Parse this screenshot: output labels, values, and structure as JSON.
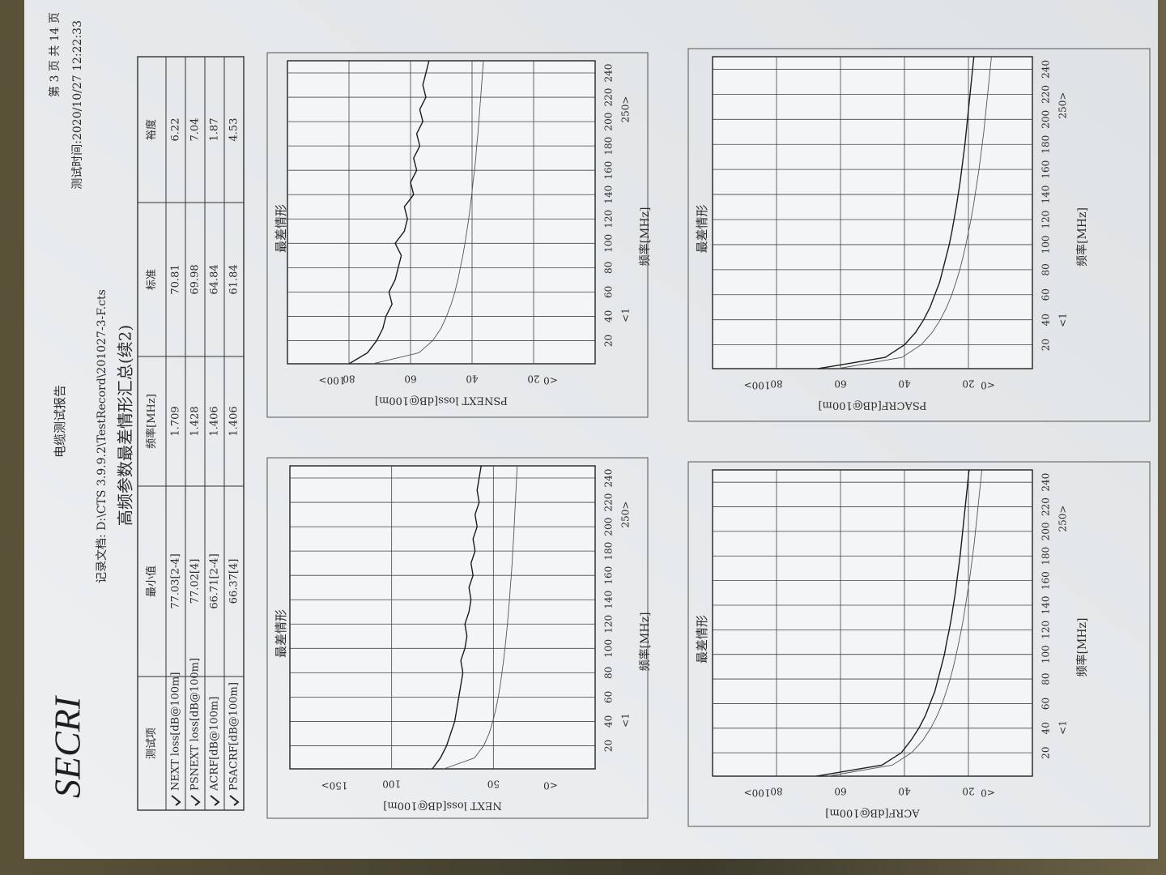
{
  "header": {
    "report_title": "电缆测试报告",
    "page": "第 3 页 共 14 页",
    "test_time": "测试时间:2020/10/27 12:22:33",
    "logo": "SECRI",
    "record_file": "记录文档: D:\\CTS 3.9.9.2\\TestRecord\\201027-3-F.cts"
  },
  "title": "高频参数最差情形汇总(续2)",
  "table": {
    "columns": [
      "测试项",
      "最小值",
      "频率[MHz]",
      "标准",
      "裕度"
    ],
    "rows": [
      [
        "NEXT loss[dB@100m]",
        "77.03[2-4]",
        1.709,
        70.81,
        6.22
      ],
      [
        "PSNEXT loss[dB@100m]",
        "77.02[4]",
        1.428,
        69.98,
        7.04
      ],
      [
        "ACRF[dB@100m]",
        "66.71[2-4]",
        1.406,
        64.84,
        1.87
      ],
      [
        "PSACRF[dB@100m]",
        "66.37[4]",
        1.406,
        61.84,
        4.53
      ]
    ]
  },
  "chart_data": [
    {
      "type": "line",
      "title": "最差情形",
      "x_label": "频率[MHz]",
      "y_label": "NEXT loss[dB@100m]",
      "grid": true,
      "x": [
        1,
        10,
        20,
        30,
        40,
        50,
        60,
        70,
        80,
        90,
        100,
        110,
        120,
        130,
        140,
        150,
        160,
        170,
        180,
        190,
        200,
        210,
        220,
        230,
        240,
        250
      ],
      "xlim": [
        1,
        250
      ],
      "xticks": [
        {
          "value": 1,
          "label": "<1"
        },
        20,
        40,
        60,
        80,
        100,
        120,
        140,
        160,
        180,
        200,
        220,
        240,
        {
          "value": 250,
          "label": "250>"
        }
      ],
      "ylim": [
        0,
        150
      ],
      "yticks": [
        {
          "value": 0,
          "label": "<0"
        },
        50,
        100,
        {
          "value": 150,
          "label": "150>"
        }
      ],
      "series": [
        {
          "color": "#1c1c1c",
          "values": [
            80,
            76,
            73,
            71,
            69,
            68,
            67,
            66,
            65,
            66,
            64,
            63,
            64,
            62,
            61,
            62,
            60,
            61,
            59,
            60,
            58,
            59,
            57,
            58,
            57,
            56
          ]
        },
        {
          "color": "#555555",
          "values": [
            74.3,
            59.3,
            54.8,
            52.1,
            50.3,
            48.8,
            47.6,
            46.6,
            45.8,
            45.0,
            44.3,
            43.7,
            43.1,
            42.6,
            42.1,
            41.7,
            41.2,
            40.8,
            40.5,
            40.1,
            39.8,
            39.5,
            39.2,
            38.9,
            38.6,
            38.3
          ]
        }
      ]
    },
    {
      "type": "line",
      "title": "最差情形",
      "x_label": "频率[MHz]",
      "y_label": "PSNEXT loss[dB@100m]",
      "grid": true,
      "x": [
        1,
        10,
        20,
        30,
        40,
        50,
        60,
        70,
        80,
        90,
        100,
        110,
        120,
        130,
        140,
        150,
        160,
        170,
        180,
        190,
        200,
        210,
        220,
        230,
        240,
        250
      ],
      "xlim": [
        1,
        250
      ],
      "xticks": [
        {
          "value": 1,
          "label": "<1"
        },
        20,
        40,
        60,
        80,
        100,
        120,
        140,
        160,
        180,
        200,
        220,
        240,
        {
          "value": 250,
          "label": "250>"
        }
      ],
      "ylim": [
        0,
        100
      ],
      "yticks": [
        {
          "value": 0,
          "label": "<0"
        },
        20,
        40,
        60,
        80,
        {
          "value": 100,
          "label": "100>"
        }
      ],
      "series": [
        {
          "color": "#1c1c1c",
          "values": [
            80,
            74,
            71,
            69,
            68,
            66,
            67,
            65,
            64,
            63,
            65,
            62,
            61,
            62,
            59,
            60,
            58,
            59,
            57,
            58,
            56,
            57,
            55,
            56,
            55,
            54
          ]
        },
        {
          "color": "#555555",
          "values": [
            72.3,
            57.3,
            52.8,
            50.1,
            48.3,
            46.8,
            45.6,
            44.6,
            43.8,
            43.0,
            42.3,
            41.7,
            41.1,
            40.6,
            40.1,
            39.7,
            39.2,
            38.8,
            38.5,
            38.1,
            37.8,
            37.5,
            37.2,
            36.9,
            36.6,
            36.3
          ]
        }
      ]
    },
    {
      "type": "line",
      "title": "最差情形",
      "x_label": "频率[MHz]",
      "y_label": "ACRF[dB@100m]",
      "grid": true,
      "x": [
        1,
        10,
        20,
        30,
        40,
        50,
        60,
        70,
        80,
        90,
        100,
        110,
        120,
        130,
        140,
        150,
        160,
        170,
        180,
        190,
        200,
        210,
        220,
        230,
        240,
        250
      ],
      "xlim": [
        1,
        250
      ],
      "xticks": [
        {
          "value": 1,
          "label": "<1"
        },
        20,
        40,
        60,
        80,
        100,
        120,
        140,
        160,
        180,
        200,
        220,
        240,
        {
          "value": 250,
          "label": "250>"
        }
      ],
      "ylim": [
        0,
        100
      ],
      "yticks": [
        {
          "value": 0,
          "label": "<0"
        },
        20,
        40,
        60,
        80,
        {
          "value": 100,
          "label": "100>"
        }
      ],
      "series": [
        {
          "color": "#1c1c1c",
          "values": [
            67.5,
            47,
            41,
            38,
            35.5,
            33.5,
            32,
            30.5,
            29.5,
            28.5,
            27.5,
            26.8,
            26,
            25.3,
            24.7,
            24.1,
            23.6,
            23.1,
            22.6,
            22.2,
            21.8,
            21.4,
            21,
            20.6,
            20.2,
            19.8
          ]
        },
        {
          "color": "#555555",
          "values": [
            63.8,
            43.8,
            37.8,
            34.3,
            31.8,
            29.8,
            28.2,
            26.9,
            25.7,
            24.7,
            23.8,
            23.0,
            22.2,
            21.5,
            20.9,
            20.3,
            19.7,
            19.2,
            18.7,
            18.2,
            17.8,
            17.4,
            17.0,
            16.6,
            16.2,
            15.8
          ]
        }
      ]
    },
    {
      "type": "line",
      "title": "最差情形",
      "x_label": "频率[MHz]",
      "y_label": "PSACRF[dB@100m]",
      "grid": true,
      "x": [
        1,
        10,
        20,
        30,
        40,
        50,
        60,
        70,
        80,
        90,
        100,
        110,
        120,
        130,
        140,
        150,
        160,
        170,
        180,
        190,
        200,
        210,
        220,
        230,
        240,
        250
      ],
      "xlim": [
        1,
        250
      ],
      "xticks": [
        {
          "value": 1,
          "label": "<1"
        },
        20,
        40,
        60,
        80,
        100,
        120,
        140,
        160,
        180,
        200,
        220,
        240,
        {
          "value": 250,
          "label": "250>"
        }
      ],
      "ylim": [
        0,
        100
      ],
      "yticks": [
        {
          "value": 0,
          "label": "<0"
        },
        20,
        40,
        60,
        80,
        {
          "value": 100,
          "label": "100>"
        }
      ],
      "series": [
        {
          "color": "#1c1c1c",
          "values": [
            67,
            46,
            40,
            36.5,
            34,
            32,
            30.5,
            29,
            28,
            27,
            26,
            25.2,
            24.5,
            23.8,
            23.2,
            22.6,
            22.1,
            21.6,
            21.1,
            20.7,
            20.3,
            19.9,
            19.5,
            19.1,
            18.7,
            18.3
          ]
        },
        {
          "color": "#555555",
          "values": [
            60.8,
            40.8,
            34.8,
            31.3,
            28.8,
            26.8,
            25.2,
            23.9,
            22.7,
            21.7,
            20.8,
            20.0,
            19.2,
            18.5,
            17.9,
            17.3,
            16.7,
            16.2,
            15.7,
            15.2,
            14.8,
            14.4,
            14.0,
            13.6,
            13.2,
            12.8
          ]
        }
      ]
    }
  ]
}
